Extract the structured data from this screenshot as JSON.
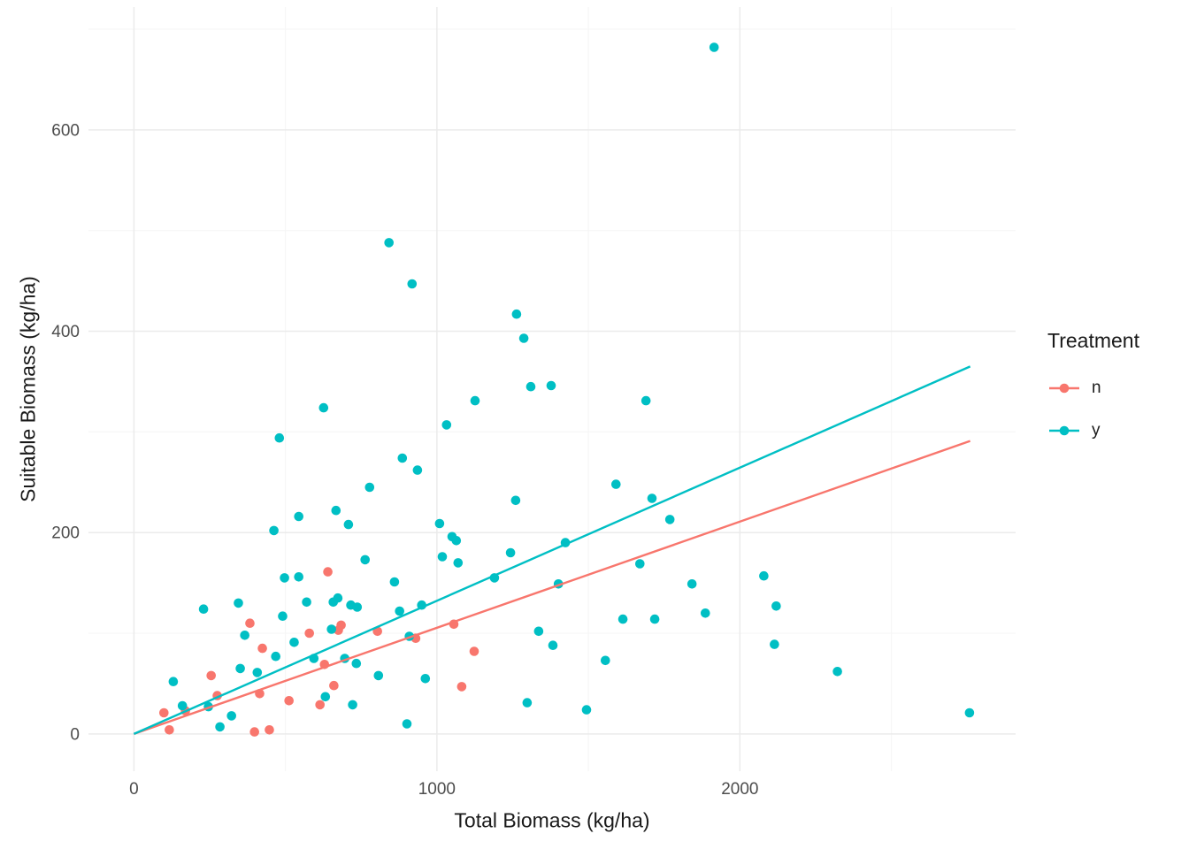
{
  "chart_data": {
    "type": "scatter",
    "title": "",
    "xlabel": "Total Biomass (kg/ha)",
    "ylabel": "Suitable Biomass (kg/ha)",
    "xlim": [
      -150,
      2910
    ],
    "ylim": [
      -37,
      722
    ],
    "x_breaks": [
      0,
      1000,
      2000
    ],
    "x_tick_labels": [
      "0",
      "1000",
      "2000"
    ],
    "y_breaks": [
      0,
      200,
      400,
      600
    ],
    "y_tick_labels": [
      "0",
      "200",
      "400",
      "600"
    ],
    "x_minor_breaks": [
      500,
      1500,
      2500
    ],
    "y_minor_breaks": [
      100,
      300,
      500,
      700
    ],
    "grid": true,
    "legend_position": "right",
    "legend": {
      "title": "Treatment",
      "entries": [
        {
          "label": "n",
          "color": "#F8766D"
        },
        {
          "label": "y",
          "color": "#00BFC4"
        }
      ]
    },
    "colors": {
      "grid_major": "#EBEBEB",
      "grid_minor": "#F6F6F6",
      "tick_text": "#4D4D4D",
      "axis_title": "#1A1A1A",
      "background": "#FFFFFF"
    },
    "series": [
      {
        "name": "n",
        "color": "#F8766D",
        "regression_line": {
          "x": [
            0,
            2760
          ],
          "y": [
            0,
            291
          ]
        },
        "points": [
          [
            99,
            21
          ],
          [
            117,
            4
          ],
          [
            170,
            23
          ],
          [
            255,
            58
          ],
          [
            275,
            38
          ],
          [
            383,
            110
          ],
          [
            398,
            2
          ],
          [
            415,
            40
          ],
          [
            424,
            85
          ],
          [
            447,
            4
          ],
          [
            512,
            33
          ],
          [
            579,
            100
          ],
          [
            614,
            29
          ],
          [
            629,
            69
          ],
          [
            640,
            161
          ],
          [
            660,
            48
          ],
          [
            675,
            103
          ],
          [
            684,
            108
          ],
          [
            804,
            102
          ],
          [
            930,
            95
          ],
          [
            1056,
            109
          ],
          [
            1082,
            47
          ],
          [
            1123,
            82
          ]
        ]
      },
      {
        "name": "y",
        "color": "#00BFC4",
        "regression_line": {
          "x": [
            0,
            2760
          ],
          "y": [
            0,
            365
          ]
        },
        "points": [
          [
            130,
            52
          ],
          [
            160,
            28
          ],
          [
            230,
            124
          ],
          [
            246,
            27
          ],
          [
            284,
            7
          ],
          [
            322,
            18
          ],
          [
            345,
            130
          ],
          [
            351,
            65
          ],
          [
            366,
            98
          ],
          [
            407,
            61
          ],
          [
            462,
            202
          ],
          [
            468,
            77
          ],
          [
            480,
            294
          ],
          [
            491,
            117
          ],
          [
            497,
            155
          ],
          [
            529,
            91
          ],
          [
            544,
            156
          ],
          [
            544,
            216
          ],
          [
            570,
            131
          ],
          [
            594,
            75
          ],
          [
            626,
            324
          ],
          [
            632,
            37
          ],
          [
            652,
            104
          ],
          [
            658,
            131
          ],
          [
            667,
            222
          ],
          [
            673,
            135
          ],
          [
            696,
            75
          ],
          [
            708,
            208
          ],
          [
            716,
            128
          ],
          [
            722,
            29
          ],
          [
            734,
            70
          ],
          [
            737,
            126
          ],
          [
            763,
            173
          ],
          [
            778,
            245
          ],
          [
            807,
            58
          ],
          [
            842,
            488
          ],
          [
            860,
            151
          ],
          [
            877,
            122
          ],
          [
            886,
            274
          ],
          [
            901,
            10
          ],
          [
            909,
            97
          ],
          [
            918,
            447
          ],
          [
            936,
            262
          ],
          [
            950,
            128
          ],
          [
            962,
            55
          ],
          [
            1009,
            209
          ],
          [
            1018,
            176
          ],
          [
            1032,
            307
          ],
          [
            1050,
            196
          ],
          [
            1064,
            192
          ],
          [
            1070,
            170
          ],
          [
            1126,
            331
          ],
          [
            1190,
            155
          ],
          [
            1243,
            180
          ],
          [
            1260,
            232
          ],
          [
            1263,
            417
          ],
          [
            1287,
            393
          ],
          [
            1298,
            31
          ],
          [
            1310,
            345
          ],
          [
            1336,
            102
          ],
          [
            1377,
            346
          ],
          [
            1383,
            88
          ],
          [
            1401,
            149
          ],
          [
            1424,
            190
          ],
          [
            1494,
            24
          ],
          [
            1556,
            73
          ],
          [
            1591,
            248
          ],
          [
            1614,
            114
          ],
          [
            1670,
            169
          ],
          [
            1690,
            331
          ],
          [
            1710,
            234
          ],
          [
            1719,
            114
          ],
          [
            1769,
            213
          ],
          [
            1842,
            149
          ],
          [
            1886,
            120
          ],
          [
            1915,
            682
          ],
          [
            2079,
            157
          ],
          [
            2114,
            89
          ],
          [
            2120,
            127
          ],
          [
            2322,
            62
          ],
          [
            2758,
            21
          ]
        ]
      }
    ]
  }
}
